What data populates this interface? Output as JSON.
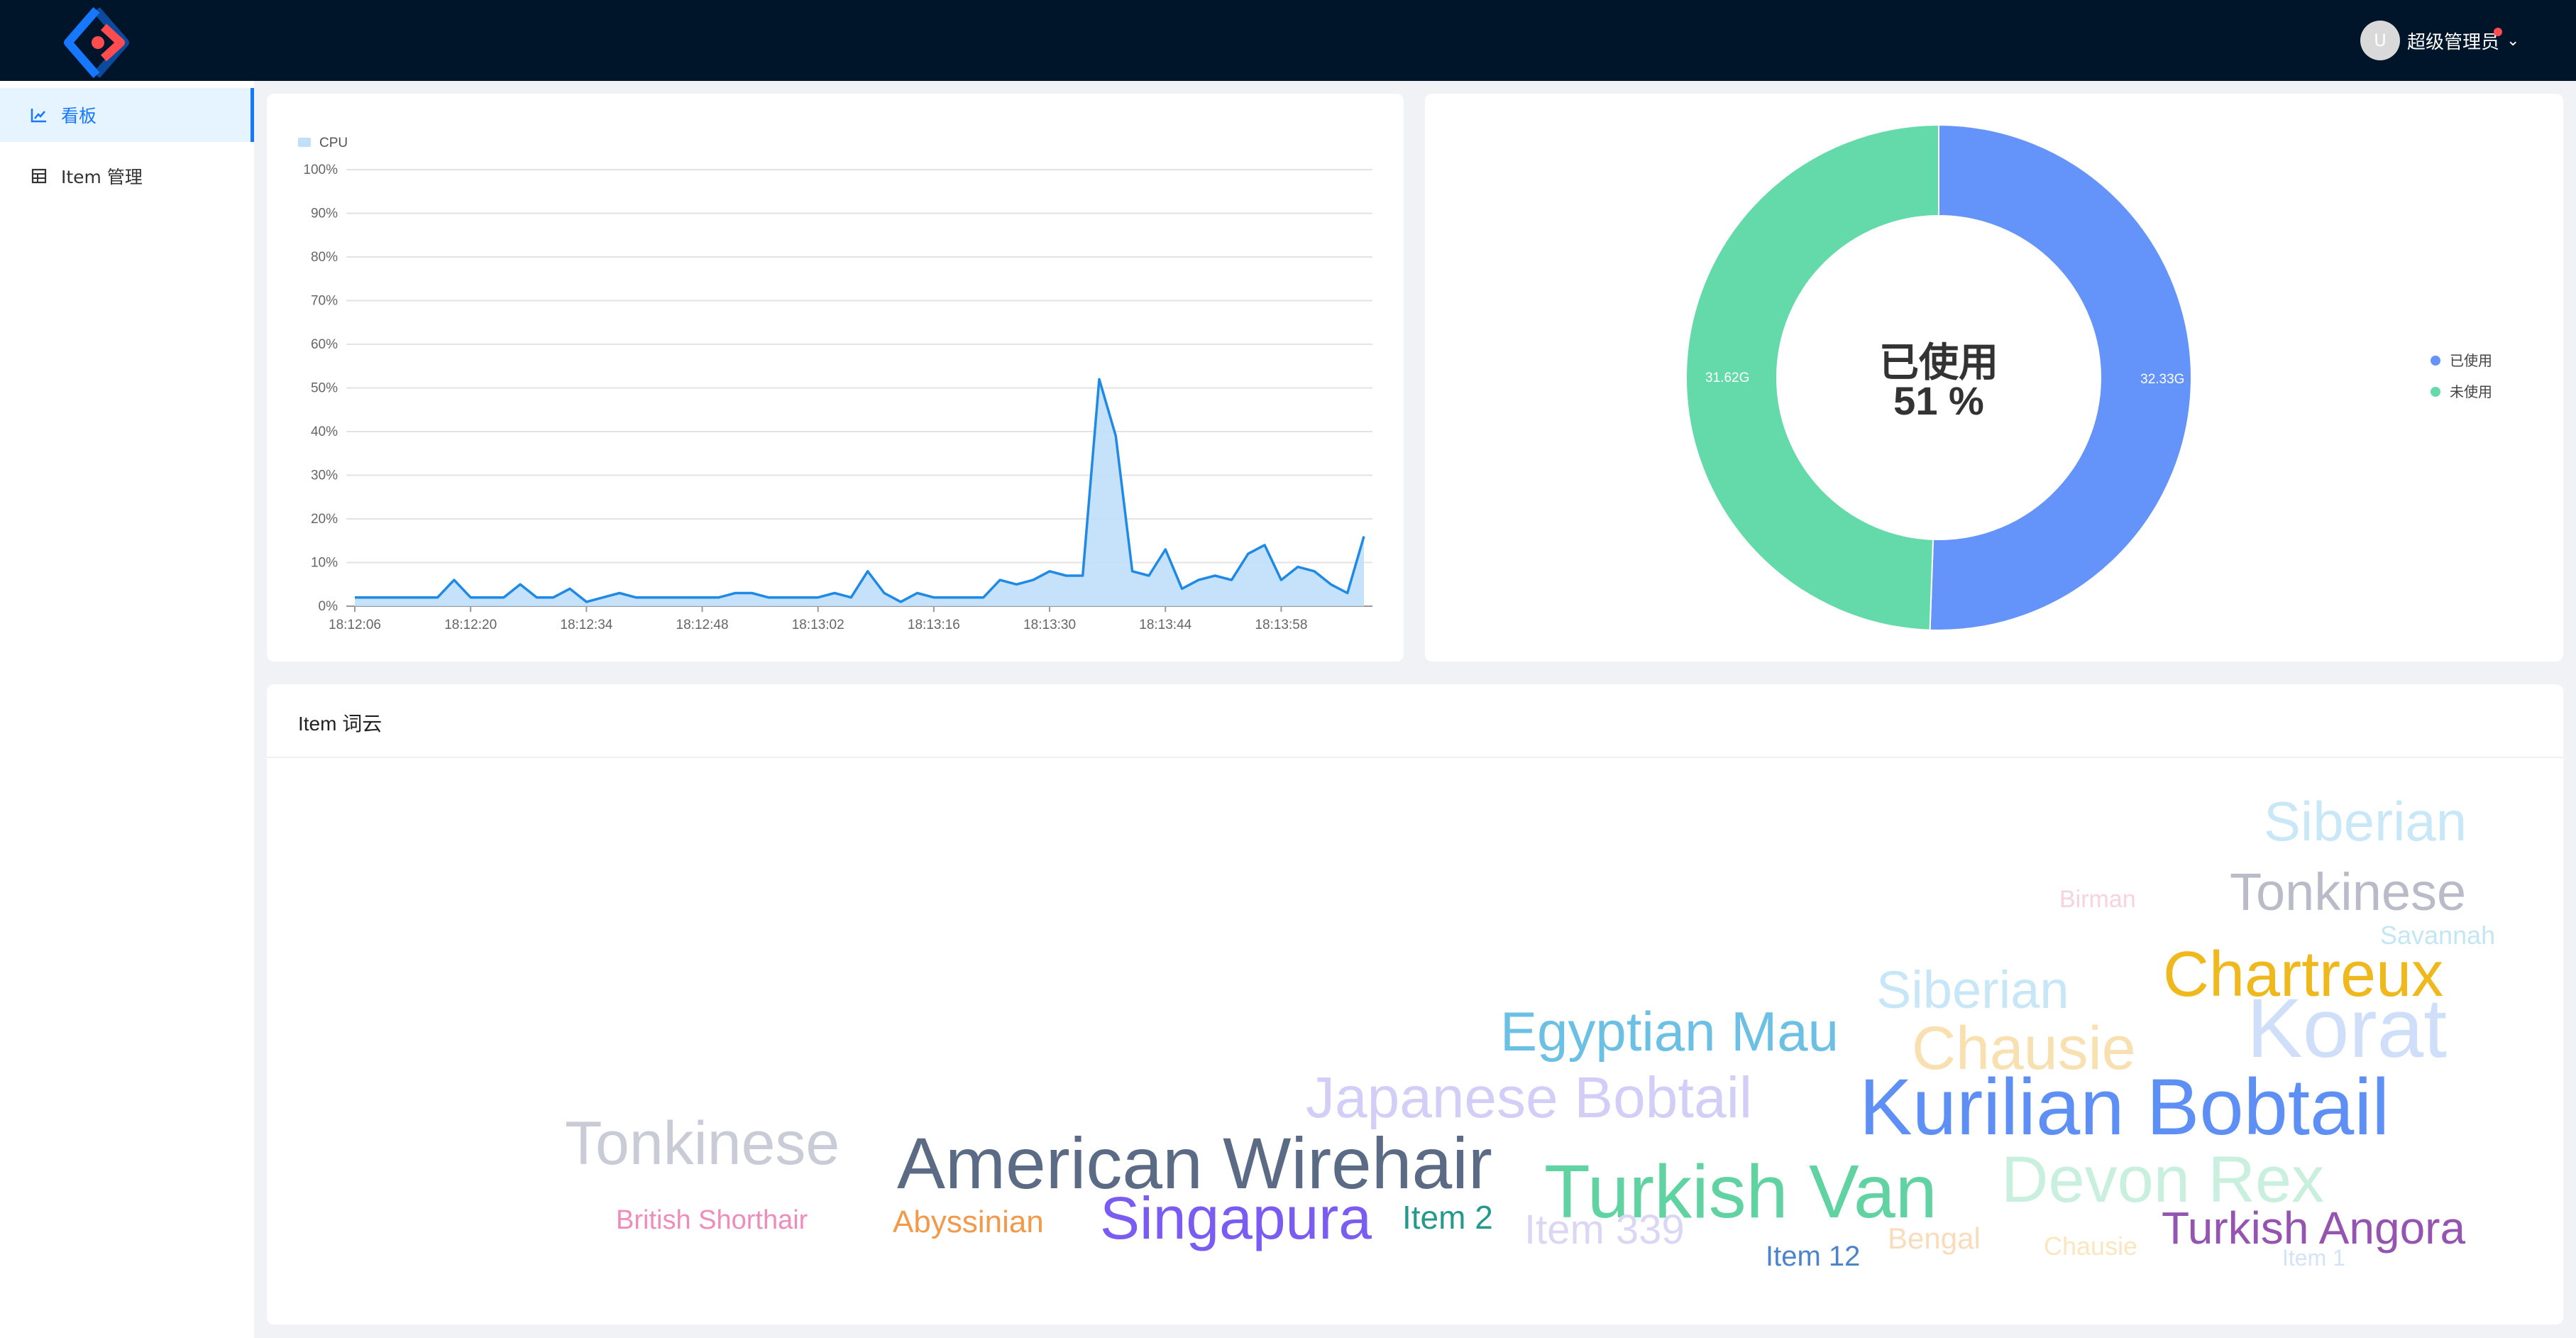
{
  "header": {
    "user": {
      "avatar_letter": "U",
      "name": "超级管理员"
    }
  },
  "sidebar": {
    "items": [
      {
        "label": "看板",
        "icon": "bar-chart-icon",
        "active": true
      },
      {
        "label": "Item 管理",
        "icon": "table-icon",
        "active": false
      }
    ]
  },
  "colors": {
    "accent": "#1677ff",
    "header_bg": "#001529",
    "cpu_line": "#1f8ae6",
    "cpu_fill": "#bfdffa",
    "used": "#6494f9",
    "unused": "#64daab"
  },
  "cpu_chart": {
    "chart_data": {
      "type": "area",
      "legend": [
        "CPU"
      ],
      "yticks": [
        "0%",
        "10%",
        "20%",
        "30%",
        "40%",
        "50%",
        "60%",
        "70%",
        "80%",
        "90%",
        "100%"
      ],
      "ylim": [
        0,
        100
      ],
      "xticks": [
        "18:12:06",
        "18:12:20",
        "18:12:34",
        "18:12:48",
        "18:13:02",
        "18:13:16",
        "18:13:30",
        "18:13:44",
        "18:13:58"
      ],
      "values": [
        2,
        2,
        2,
        2,
        2,
        2,
        6,
        2,
        2,
        2,
        5,
        2,
        2,
        4,
        1,
        2,
        3,
        2,
        2,
        2,
        2,
        2,
        2,
        3,
        3,
        2,
        2,
        2,
        2,
        3,
        2,
        8,
        3,
        1,
        3,
        2,
        2,
        2,
        2,
        6,
        5,
        6,
        8,
        7,
        7,
        52,
        39,
        8,
        7,
        13,
        4,
        6,
        7,
        6,
        12,
        14,
        6,
        9,
        8,
        5,
        3,
        16
      ]
    }
  },
  "memory_chart": {
    "center_line1": "已使用",
    "center_line2": "51 %",
    "chart_data": {
      "type": "pie",
      "slices": [
        {
          "name": "已使用",
          "value": 32.33,
          "label": "32.33G"
        },
        {
          "name": "未使用",
          "value": 31.62,
          "label": "31.62G"
        }
      ],
      "legend_position": "right"
    }
  },
  "wordcloud": {
    "title": "Item 词云",
    "words": [
      {
        "text": "Siberian",
        "color": "#c9e8f7"
      },
      {
        "text": "Tonkinese",
        "color": "#b9bcc8"
      },
      {
        "text": "Birman",
        "color": "#f6d3df"
      },
      {
        "text": "Savannah",
        "color": "#c4e6f3"
      },
      {
        "text": "Chartreux",
        "color": "#efb81c"
      },
      {
        "text": "Siberian",
        "color": "#c7e7f8"
      },
      {
        "text": "Egyptian Mau",
        "color": "#6cc0e3"
      },
      {
        "text": "Chausie",
        "color": "#f8e0b0"
      },
      {
        "text": "Korat",
        "color": "#cfdffa"
      },
      {
        "text": "Japanese Bobtail",
        "color": "#d3cef8"
      },
      {
        "text": "Kurilian Bobtail",
        "color": "#5e8ff5"
      },
      {
        "text": "Tonkinese",
        "color": "#c9cbd6"
      },
      {
        "text": "American Wirehair",
        "color": "#5b6a85"
      },
      {
        "text": "Turkish Van",
        "color": "#61d3a2"
      },
      {
        "text": "Devon Rex",
        "color": "#c9efdf"
      },
      {
        "text": "British Shorthair",
        "color": "#ef8cbb"
      },
      {
        "text": "Abyssinian",
        "color": "#f39a4a"
      },
      {
        "text": "Singapura",
        "color": "#7b5cf2"
      },
      {
        "text": "Item 2",
        "color": "#259a8c"
      },
      {
        "text": "Item 339",
        "color": "#dcd6f5"
      },
      {
        "text": "Bengal",
        "color": "#f9dcbb"
      },
      {
        "text": "Chausie",
        "color": "#fae6bf"
      },
      {
        "text": "Turkish Angora",
        "color": "#9454b0"
      },
      {
        "text": "Item 12",
        "color": "#4c84cc"
      },
      {
        "text": "Item 1",
        "color": "#d3e3f8"
      }
    ]
  }
}
